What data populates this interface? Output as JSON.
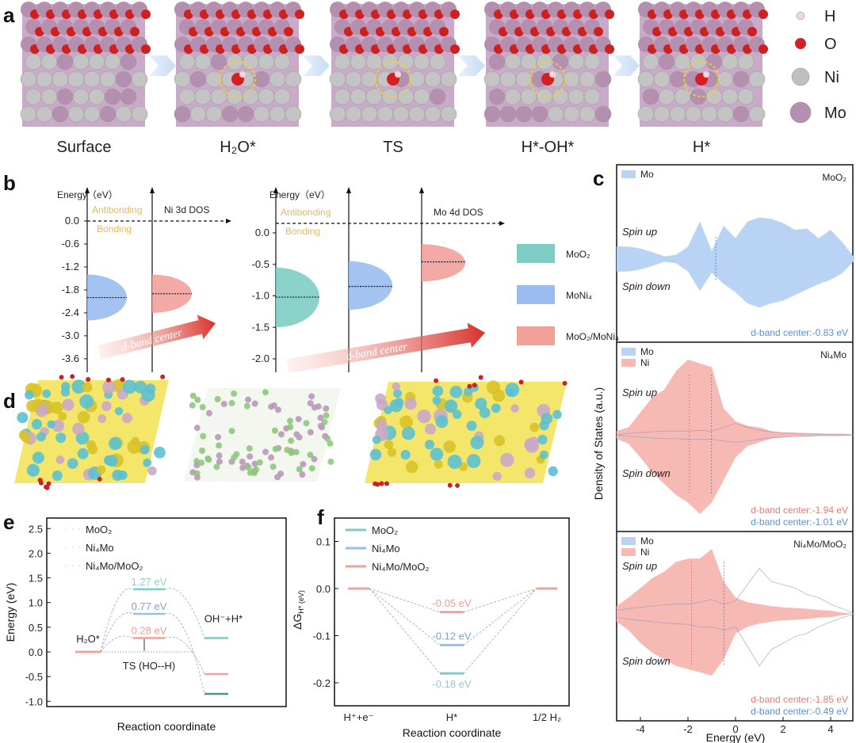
{
  "panel_labels": [
    "a",
    "b",
    "c",
    "d",
    "e",
    "f"
  ],
  "panel_a": {
    "captions": [
      "Surface",
      "H₂O*",
      "TS",
      "H*-OH*",
      "H*"
    ],
    "legend": [
      {
        "label": "H",
        "color": "#f3d6d8"
      },
      {
        "label": "O",
        "color": "#d42020"
      },
      {
        "label": "Ni",
        "color": "#bfbfbf"
      },
      {
        "label": "Mo",
        "color": "#b58fb0"
      }
    ]
  },
  "colors": {
    "moo2": "#7ecdc4",
    "ni4mo": "#9bbcf0",
    "hetero": "#f2a09a",
    "text_teal": "#8fcfc8",
    "text_blue": "#7aa3dd",
    "text_pink": "#ee9c98",
    "bonding_text": "#e8b860",
    "arrow": "#d8302a",
    "dos_mo": "#b9d3f5",
    "dos_ni": "#f7b9b3",
    "dband_blue": "#5b8fd6",
    "dband_pink": "#e77a7a"
  },
  "chart_data": [
    {
      "id": "b-left",
      "type": "diagram",
      "ylabel": "Energy（eV）",
      "yticks": [
        0.0,
        -0.6,
        -1.2,
        -1.8,
        -2.4,
        -3.0,
        -3.6
      ],
      "ytick_labels": [
        "0.0",
        "-0.6",
        "-1.2",
        "-1.8",
        "-2.4",
        "-3.0",
        "-3.6"
      ],
      "annotations": {
        "antibonding": "Antibonding",
        "bonding": "Bonding",
        "dos": "Ni 3d DOS",
        "arrow": "d-band center"
      },
      "bands": [
        {
          "name": "MoNi₄",
          "center": -2.0,
          "top": -1.4,
          "bottom": -2.6
        },
        {
          "name": "MoO₂/MoNi₄",
          "center": -1.9,
          "top": -1.4,
          "bottom": -2.4
        }
      ]
    },
    {
      "id": "b-right",
      "type": "diagram",
      "ylabel": "Energy（eV）",
      "yticks": [
        0.0,
        -0.5,
        -1.0,
        -1.5,
        -2.0
      ],
      "ytick_labels": [
        "0.0",
        "-0.5",
        "-1.0",
        "-1.5",
        "-2.0"
      ],
      "annotations": {
        "antibonding": "Antibonding",
        "bonding": "Bonding",
        "dos": "Mo 4d DOS",
        "arrow": "d-band center"
      },
      "bands": [
        {
          "name": "MoO₂",
          "center": -1.02,
          "top": -0.55,
          "bottom": -1.5
        },
        {
          "name": "MoNi₄",
          "center": -0.85,
          "top": -0.45,
          "bottom": -1.22
        },
        {
          "name": "MoO₂/MoNi₄",
          "center": -0.46,
          "top": -0.18,
          "bottom": -0.77
        }
      ],
      "legend": [
        "MoO₂",
        "MoNi₄",
        "MoO₂/MoNi₄"
      ]
    },
    {
      "id": "c",
      "type": "area",
      "xlabel": "Energy (eV)",
      "ylabel": "Density of States (a.u.)",
      "xlim": [
        -5,
        5
      ],
      "xticks": [
        -4,
        -2,
        0,
        2,
        4
      ],
      "xtick_labels": [
        "-4",
        "-2",
        "0",
        "2",
        "4"
      ],
      "spin_up": "Spin up",
      "spin_down": "Spin down",
      "energy": [
        -5,
        -4.5,
        -4,
        -3.5,
        -3,
        -2.5,
        -2,
        -1.5,
        -1,
        -0.5,
        0,
        0.5,
        1,
        1.5,
        2,
        2.5,
        3,
        3.5,
        4,
        4.5,
        5
      ],
      "subplots": [
        {
          "title": "MoO₂",
          "legend": [
            "Mo"
          ],
          "series": [
            {
              "name": "Mo",
              "fill": true,
              "up": [
                0.45,
                0.45,
                0.38,
                0.25,
                0.1,
                0.15,
                0.45,
                1.35,
                0.3,
                1.2,
                0.75,
                1.35,
                1.5,
                1.45,
                1.3,
                1.05,
                1.1,
                0.75,
                1.05,
                0.6,
                0.05
              ],
              "down": [
                0.45,
                0.45,
                0.38,
                0.25,
                0.1,
                0.15,
                0.45,
                1.15,
                0.5,
                0.9,
                1.2,
                1.6,
                1.75,
                1.6,
                1.5,
                1.3,
                1.1,
                0.9,
                0.75,
                0.5,
                0.05
              ]
            }
          ],
          "dband": [
            {
              "label": "d-band center:-0.83 eV",
              "value": -0.83,
              "species": "Mo"
            }
          ]
        },
        {
          "title": "Ni₄Mo",
          "legend": [
            "Mo",
            "Ni"
          ],
          "series": [
            {
              "name": "Ni",
              "fill": true,
              "up": [
                0.05,
                0.1,
                0.3,
                0.5,
                0.6,
                0.85,
                1.0,
                0.95,
                0.9,
                0.35,
                0.18,
                0.12,
                0.1,
                0.05,
                0.03,
                0.03,
                0.02,
                0.02,
                0.01,
                0.01,
                0
              ],
              "down": [
                0.05,
                0.12,
                0.3,
                0.5,
                0.65,
                0.8,
                0.9,
                1.05,
                0.9,
                0.6,
                0.3,
                0.15,
                0.1,
                0.05,
                0.03,
                0.02,
                0.02,
                0.01,
                0.01,
                0.01,
                0
              ]
            },
            {
              "name": "Mo",
              "fill": false,
              "up": [
                0,
                0.02,
                0.03,
                0.04,
                0.05,
                0.05,
                0.05,
                0.06,
                0.05,
                0.1,
                0.15,
                0.1,
                0.06,
                0.04,
                0.03,
                0.02,
                0.02,
                0.01,
                0.01,
                0.01,
                0
              ],
              "down": [
                0,
                0.02,
                0.03,
                0.04,
                0.05,
                0.05,
                0.06,
                0.06,
                0.06,
                0.08,
                0.1,
                0.08,
                0.06,
                0.04,
                0.03,
                0.02,
                0.02,
                0.01,
                0.01,
                0.01,
                0
              ]
            }
          ],
          "dband": [
            {
              "label": "d-band center:-1.94 eV",
              "value": -1.94,
              "species": "Ni"
            },
            {
              "label": "d-band center:-1.01 eV",
              "value": -1.01,
              "species": "Mo"
            }
          ]
        },
        {
          "title": "Ni₄Mo/MoO₂",
          "legend": [
            "Mo",
            "Ni"
          ],
          "series": [
            {
              "name": "Ni",
              "fill": true,
              "up": [
                0.12,
                0.25,
                0.4,
                0.55,
                0.65,
                0.8,
                0.85,
                0.85,
                1.0,
                0.5,
                0.25,
                0.18,
                0.15,
                0.12,
                0.1,
                0.09,
                0.08,
                0.06,
                0.05,
                0.02,
                0
              ],
              "down": [
                0.12,
                0.25,
                0.45,
                0.6,
                0.7,
                0.8,
                0.85,
                0.9,
                0.95,
                0.7,
                0.3,
                0.2,
                0.15,
                0.12,
                0.1,
                0.09,
                0.08,
                0.06,
                0.05,
                0.02,
                0
              ]
            },
            {
              "name": "Mo",
              "fill": false,
              "up": [
                0.05,
                0.08,
                0.1,
                0.12,
                0.14,
                0.15,
                0.15,
                0.18,
                0.22,
                0.15,
                0.2,
                0.45,
                0.7,
                0.5,
                0.45,
                0.4,
                0.3,
                0.25,
                0.15,
                0.08,
                0
              ],
              "down": [
                0.05,
                0.08,
                0.1,
                0.12,
                0.14,
                0.15,
                0.16,
                0.2,
                0.2,
                0.25,
                0.2,
                0.5,
                0.8,
                0.55,
                0.45,
                0.35,
                0.3,
                0.2,
                0.12,
                0.06,
                0
              ]
            }
          ],
          "dband": [
            {
              "label": "d-band center:-1.85 eV",
              "value": -1.85,
              "species": "Ni"
            },
            {
              "label": "d-band center:-0.49 eV",
              "value": -0.49,
              "species": "Mo"
            }
          ]
        }
      ]
    },
    {
      "id": "e",
      "type": "line",
      "xlabel": "Reaction coordinate",
      "ylabel": "Energy (eV)",
      "ylim": [
        -1.0,
        2.5
      ],
      "yticks": [
        2.5,
        2.0,
        1.5,
        1.0,
        0.5,
        0.0,
        -0.5,
        -1.0
      ],
      "ytick_labels": [
        "2.5",
        "2.0",
        "1.5",
        "1.0",
        "0.5",
        "0.0",
        "-0.5",
        "-1.0"
      ],
      "states": [
        "H₂O*",
        "TS (HO--H)",
        "OH⁻+H*"
      ],
      "series": [
        {
          "name": "MoO₂",
          "values": [
            0,
            1.27,
            0.28
          ],
          "label": "1.27 eV"
        },
        {
          "name": "Ni₄Mo",
          "values": [
            0,
            0.77,
            -0.85
          ],
          "label": "0.77 eV"
        },
        {
          "name": "Ni₄Mo/MoO₂",
          "values": [
            0,
            0.28,
            -0.45
          ],
          "label": "0.28 eV"
        }
      ]
    },
    {
      "id": "f",
      "type": "line",
      "xlabel": "Reaction coordinate",
      "ylabel": "ΔG",
      "ylabel_sub": "H* (eV)",
      "ylim": [
        -0.25,
        0.15
      ],
      "yticks": [
        0.1,
        0.0,
        -0.1,
        -0.2
      ],
      "ytick_labels": [
        "0.1",
        "0.0",
        "-0.1",
        "-0.2"
      ],
      "categories": [
        "H⁺+e⁻",
        "H*",
        "1/2 H₂"
      ],
      "series": [
        {
          "name": "MoO₂",
          "values": [
            0,
            -0.18,
            0
          ],
          "label": "-0.18 eV"
        },
        {
          "name": "Ni₄Mo",
          "values": [
            0,
            -0.12,
            0
          ],
          "label": "-0.12 eV"
        },
        {
          "name": "Ni₄Mo/MoO₂",
          "values": [
            0,
            -0.05,
            0
          ],
          "label": "-0.05 eV"
        }
      ]
    }
  ]
}
